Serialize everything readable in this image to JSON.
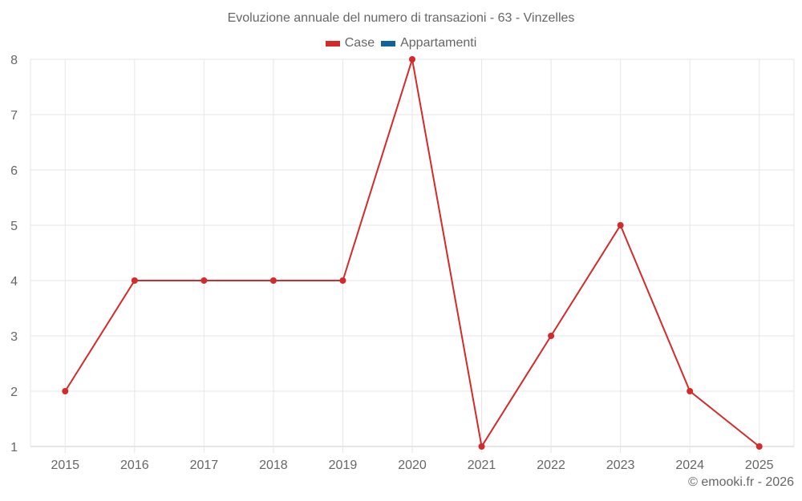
{
  "title": "Evoluzione annuale del numero di transazioni - 63 - Vinzelles",
  "legend": [
    {
      "label": "Case",
      "color": "#d32a2a"
    },
    {
      "label": "Appartamenti",
      "color": "#10649e"
    }
  ],
  "footer": "© emooki.fr - 2026",
  "chart_data": {
    "type": "line",
    "title": "Evoluzione annuale del numero di transazioni - 63 - Vinzelles",
    "xlabel": "",
    "ylabel": "",
    "x": [
      "2015",
      "2016",
      "2017",
      "2018",
      "2019",
      "2020",
      "2021",
      "2022",
      "2023",
      "2024",
      "2025"
    ],
    "series": [
      {
        "name": "Case",
        "color": "#d32a2a",
        "values": [
          2,
          4,
          4,
          4,
          4,
          8,
          1,
          3,
          5,
          2,
          1
        ]
      },
      {
        "name": "Appartamenti",
        "color": "#10649e",
        "values": []
      }
    ],
    "yticks": [
      1,
      2,
      3,
      4,
      5,
      6,
      7,
      8
    ],
    "ylim": [
      1,
      8
    ],
    "grid": true,
    "legend_position": "top"
  }
}
